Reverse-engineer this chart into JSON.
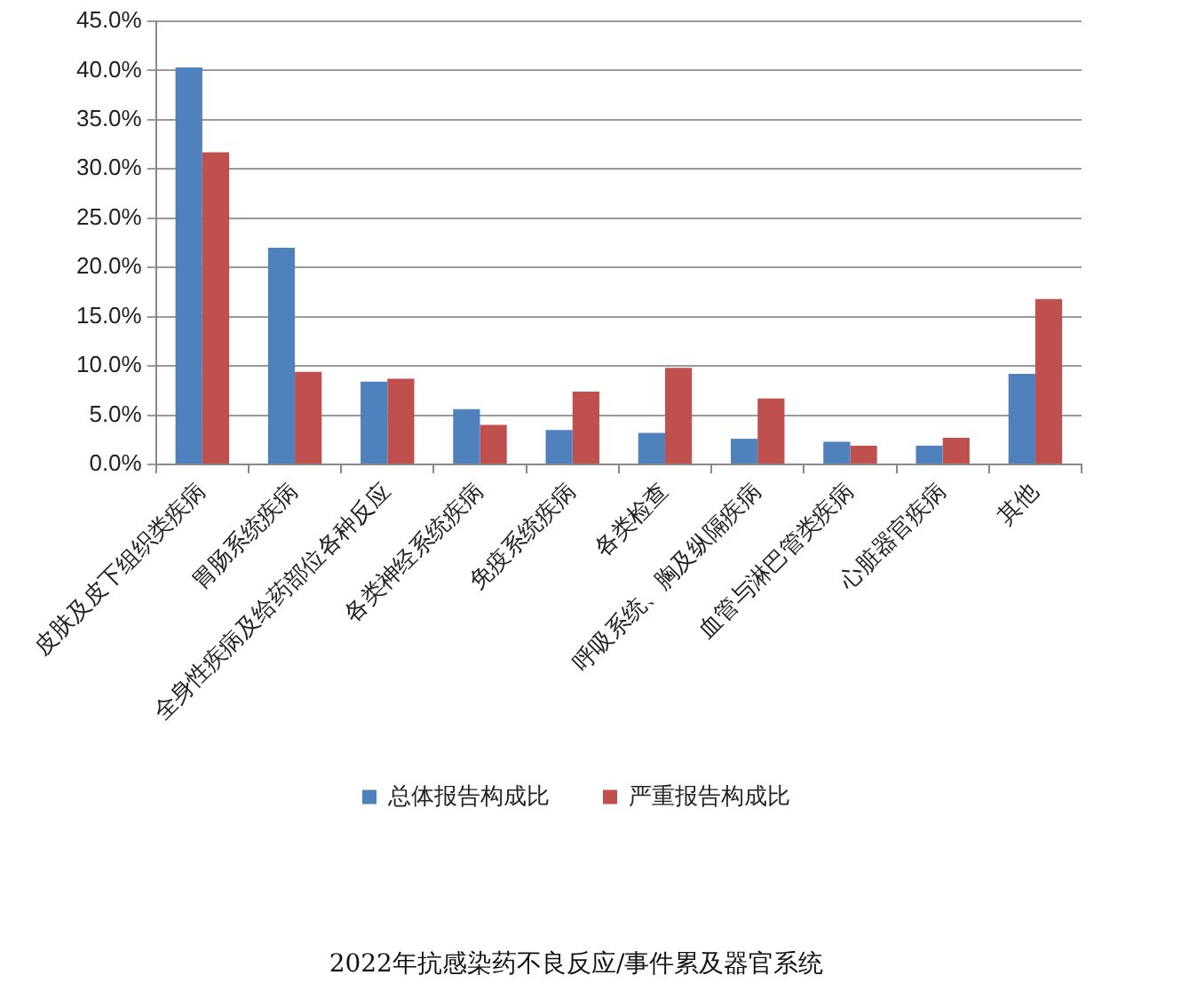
{
  "chart_data": {
    "type": "bar",
    "title": "2022年抗感染药不良反应/事件累及器官系统",
    "categories": [
      "皮肤及皮下组织类疾病",
      "胃肠系统疾病",
      "全身性疾病及给药部位各种反应",
      "各类神经系统疾病",
      "免疫系统疾病",
      "各类检查",
      "呼吸系统、胸及纵隔疾病",
      "血管与淋巴管类疾病",
      "心脏器官疾病",
      "其他"
    ],
    "series": [
      {
        "name": "总体报告构成比",
        "color": "#4f81bd",
        "values": [
          40.3,
          22.0,
          8.4,
          5.6,
          3.5,
          3.2,
          2.6,
          2.3,
          1.9,
          9.2
        ]
      },
      {
        "name": "严重报告构成比",
        "color": "#c0504d",
        "values": [
          31.7,
          9.4,
          8.7,
          4.0,
          7.4,
          9.8,
          6.7,
          1.9,
          2.7,
          16.8
        ]
      }
    ],
    "ylim": [
      0,
      45
    ],
    "yticks": [
      {
        "value": 0,
        "label": "0.0%"
      },
      {
        "value": 5,
        "label": "5.0%"
      },
      {
        "value": 10,
        "label": "10.0%"
      },
      {
        "value": 15,
        "label": "15.0%"
      },
      {
        "value": 20,
        "label": "20.0%"
      },
      {
        "value": 25,
        "label": "25.0%"
      },
      {
        "value": 30,
        "label": "30.0%"
      },
      {
        "value": 35,
        "label": "35.0%"
      },
      {
        "value": 40,
        "label": "40.0%"
      },
      {
        "value": 45,
        "label": "45.0%"
      }
    ],
    "grid": "y",
    "legend": "bottom"
  }
}
